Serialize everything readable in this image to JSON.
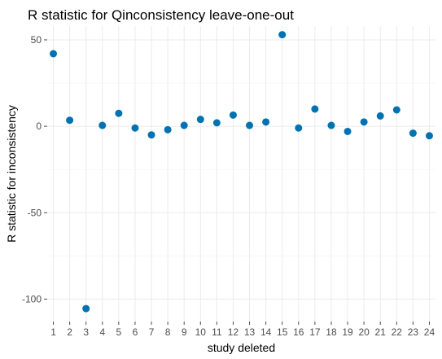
{
  "chart_data": {
    "type": "scatter",
    "title": "R statistic for Qinconsistency leave-one-out",
    "xlabel": "study deleted",
    "ylabel": "R statistic for inconsistency",
    "x": [
      "1",
      "2",
      "3",
      "4",
      "5",
      "6",
      "7",
      "8",
      "9",
      "10",
      "11",
      "12",
      "13",
      "14",
      "15",
      "16",
      "17",
      "18",
      "19",
      "20",
      "21",
      "22",
      "23",
      "24"
    ],
    "values": [
      42,
      3.5,
      -105.5,
      0.5,
      7.5,
      -1,
      -5,
      -2,
      0.5,
      4,
      2,
      6.5,
      0.5,
      2.5,
      53,
      -1,
      10,
      0.5,
      -3,
      2.5,
      6,
      9.5,
      -4,
      -5.5
    ],
    "yticks": [
      -100,
      -50,
      0,
      50
    ],
    "ylim": [
      -113,
      58
    ],
    "grid": true,
    "legend": "none",
    "colors": {
      "point": "#0072B2",
      "panel": "#ffffff",
      "grid": "#ebebeb"
    }
  }
}
